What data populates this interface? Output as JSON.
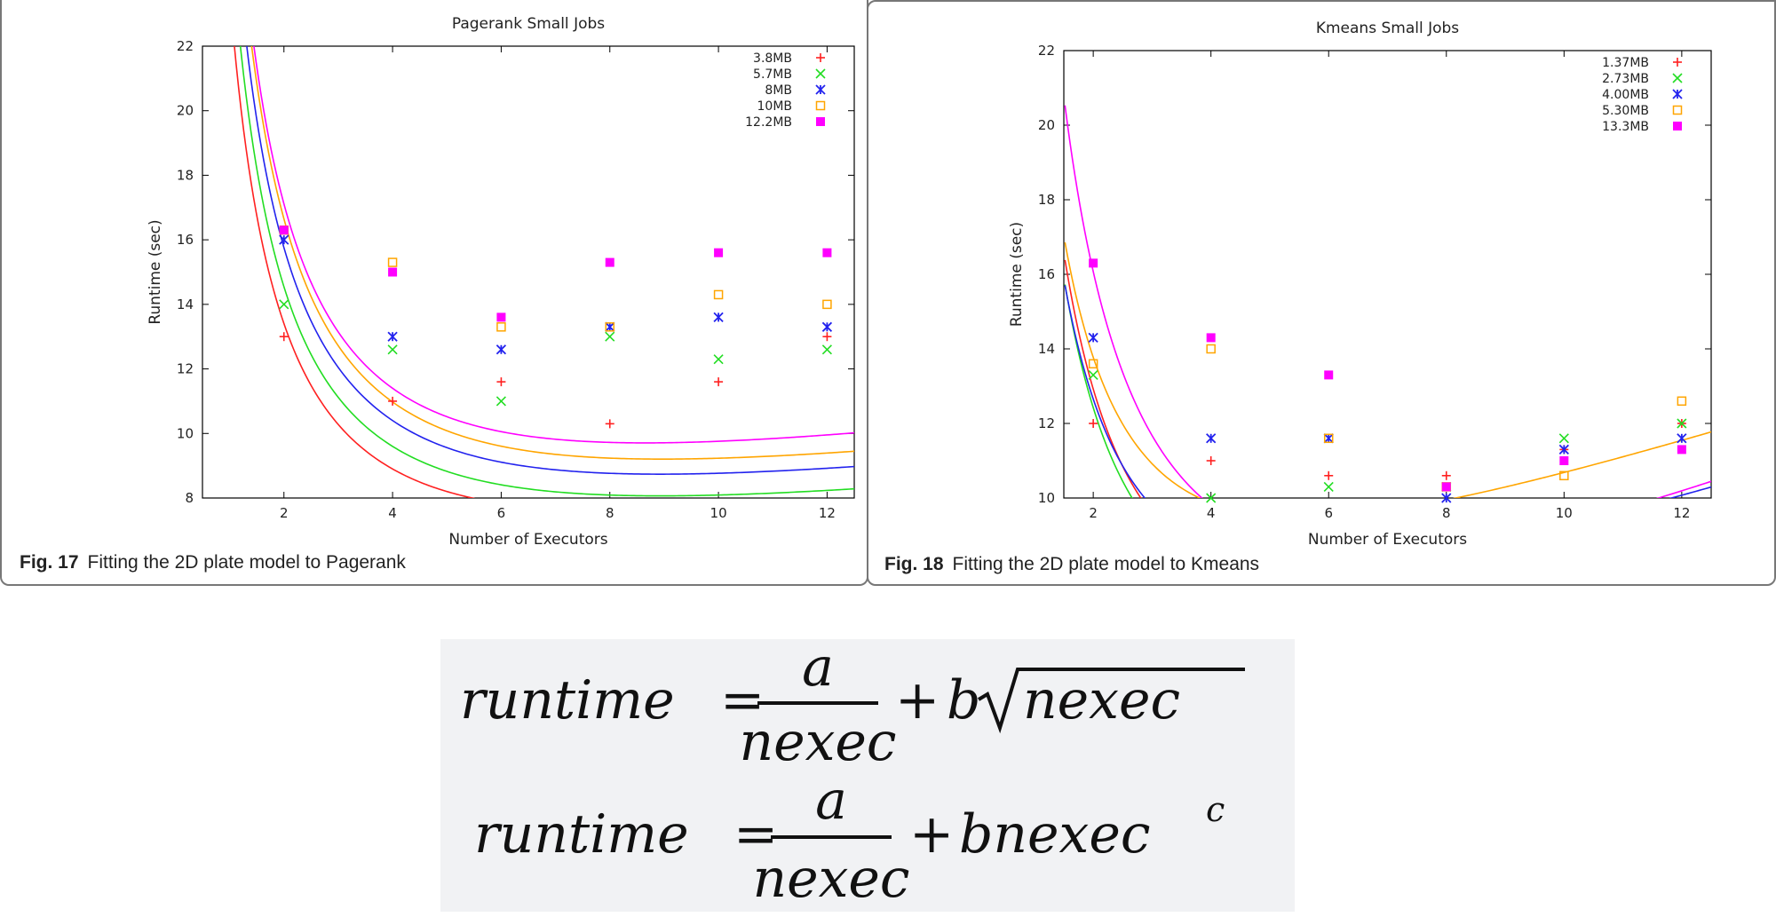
{
  "chart_data": [
    {
      "type": "scatter",
      "title": "Pagerank Small Jobs",
      "xlabel": "Number of Executors",
      "ylabel": "Runtime (sec)",
      "xlim": [
        0.5,
        12.5
      ],
      "ylim": [
        8,
        22
      ],
      "x_ticks": [
        2,
        4,
        6,
        8,
        10,
        12
      ],
      "y_ticks": [
        8,
        10,
        12,
        14,
        16,
        18,
        20,
        22
      ],
      "legend_position": "top-right",
      "grid": false,
      "caption_label": "Fig. 17",
      "caption_text": "Fitting the 2D plate model to Pagerank",
      "series": [
        {
          "name": "3.8MB",
          "marker": "plus",
          "color": "#ff2020",
          "x": [
            2,
            4,
            6,
            8,
            10,
            12
          ],
          "y": [
            13.0,
            11.0,
            11.6,
            10.3,
            11.6,
            13.0
          ],
          "fit": {
            "a": 22,
            "b": 1.7,
            "c": 0.5
          }
        },
        {
          "name": "5.7MB",
          "marker": "cross",
          "color": "#22dd22",
          "x": [
            2,
            4,
            6,
            8,
            10,
            12
          ],
          "y": [
            14.0,
            12.6,
            11.0,
            13.0,
            12.3,
            12.6
          ],
          "fit": {
            "a": 24,
            "b": 1.8,
            "c": 0.5
          }
        },
        {
          "name": "8MB",
          "marker": "star",
          "color": "#2222ee",
          "x": [
            2,
            4,
            6,
            8,
            10,
            12
          ],
          "y": [
            16.0,
            13.0,
            12.6,
            13.3,
            13.6,
            13.3
          ],
          "fit": {
            "a": 26,
            "b": 1.95,
            "c": 0.5
          }
        },
        {
          "name": "10MB",
          "marker": "open-square",
          "color": "#ffa500",
          "x": [
            2,
            4,
            6,
            8,
            10,
            12
          ],
          "y": [
            16.3,
            15.3,
            13.3,
            13.3,
            14.3,
            14.0
          ],
          "fit": {
            "a": 27.5,
            "b": 2.05,
            "c": 0.5
          }
        },
        {
          "name": "12.2MB",
          "marker": "filled-square",
          "color": "#ff00ff",
          "x": [
            2,
            4,
            6,
            8,
            10,
            12
          ],
          "y": [
            16.3,
            15.0,
            13.6,
            15.3,
            15.6,
            15.6
          ],
          "fit": {
            "a": 28,
            "b": 2.2,
            "c": 0.5
          }
        }
      ]
    },
    {
      "type": "scatter",
      "title": "Kmeans Small Jobs",
      "xlabel": "Number of Executors",
      "ylabel": "Runtime (sec)",
      "xlim": [
        1.5,
        12.5
      ],
      "ylim": [
        10,
        22
      ],
      "x_ticks": [
        2,
        4,
        6,
        8,
        10,
        12
      ],
      "y_ticks": [
        10,
        12,
        14,
        16,
        18,
        20,
        22
      ],
      "legend_position": "top-right",
      "grid": false,
      "caption_label": "Fig. 18",
      "caption_text": "Fitting the 2D plate model to Kmeans",
      "series": [
        {
          "name": "1.37MB",
          "marker": "plus",
          "color": "#ff2020",
          "x": [
            2,
            4,
            6,
            8,
            10,
            12
          ],
          "y": [
            12.0,
            11.0,
            10.6,
            10.6,
            11.3,
            12.0
          ],
          "fit": {
            "a": 23.7,
            "b": 0.5,
            "c": 1.1
          }
        },
        {
          "name": "2.73MB",
          "marker": "cross",
          "color": "#22dd22",
          "x": [
            2,
            4,
            6,
            8,
            10,
            12
          ],
          "y": [
            13.3,
            10.0,
            10.3,
            10.3,
            11.6,
            12.0
          ],
          "fit": {
            "a": 22.7,
            "b": 0.5,
            "c": 1.1
          }
        },
        {
          "name": "4.00MB",
          "marker": "star",
          "color": "#2222ee",
          "x": [
            2,
            4,
            6,
            8,
            10,
            12
          ],
          "y": [
            14.3,
            11.6,
            11.6,
            10.0,
            11.3,
            11.6
          ],
          "fit": {
            "a": 21.7,
            "b": 1.0,
            "c": 0.85
          }
        },
        {
          "name": "5.30MB",
          "marker": "open-square",
          "color": "#ffa500",
          "x": [
            2,
            4,
            6,
            8,
            10,
            12
          ],
          "y": [
            13.6,
            14.0,
            11.6,
            10.3,
            10.6,
            12.6
          ],
          "fit": {
            "a": 22.5,
            "b": 1.5,
            "c": 0.75
          }
        },
        {
          "name": "13.3MB",
          "marker": "filled-square",
          "color": "#ff00ff",
          "x": [
            2,
            4,
            6,
            8,
            10,
            12
          ],
          "y": [
            16.3,
            14.3,
            13.3,
            10.3,
            11.0,
            11.3
          ],
          "fit": {
            "a": 30,
            "b": 0.5,
            "c": 1.1
          }
        }
      ]
    }
  ],
  "formulas": {
    "eq1": {
      "lhs": "runtime",
      "equals": "=",
      "numerator": "a",
      "denominator": "nexec",
      "plus": "+",
      "coef": "b",
      "radicand": "nexec"
    },
    "eq2": {
      "lhs": "runtime",
      "equals": "=",
      "numerator": "a",
      "denominator": "nexec",
      "plus": "+",
      "term": "bnexec",
      "exponent": "c"
    }
  }
}
